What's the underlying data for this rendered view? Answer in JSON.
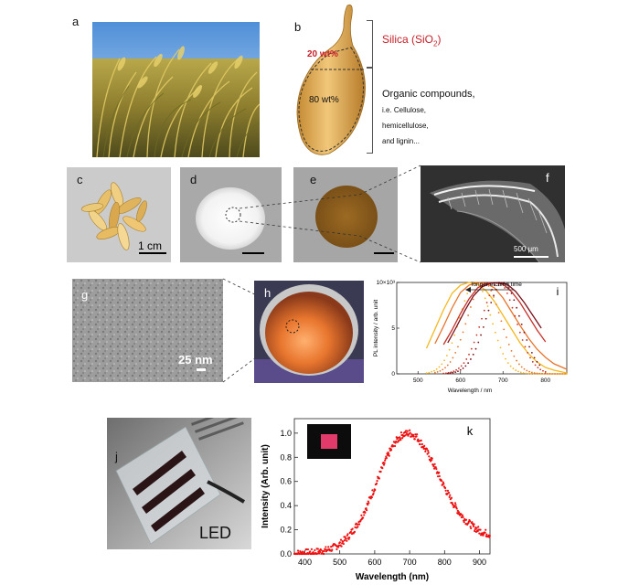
{
  "panels": {
    "a": {
      "label": "a"
    },
    "b": {
      "label": "b",
      "silica_label": "Silica (SiO",
      "silica_sub": "2",
      "silica_close": ")",
      "silica_pct": "20 wt%",
      "organic_pct": "80 wt%",
      "organic_title": "Organic compounds,",
      "organic_lines": [
        "i.e. Cellulose,",
        "hemicellulose,",
        "and lignin..."
      ]
    },
    "c": {
      "label": "c",
      "scale": "1 cm"
    },
    "d": {
      "label": "d"
    },
    "e": {
      "label": "e"
    },
    "f": {
      "label": "f",
      "scale": "500 µm"
    },
    "g": {
      "label": "g",
      "scale": "25 nm"
    },
    "h": {
      "label": "h"
    },
    "i": {
      "label": "i"
    },
    "j": {
      "label": "j",
      "caption": "LED"
    },
    "k": {
      "label": "k"
    }
  },
  "colors": {
    "silica_red": "#c8202a",
    "husk_gold": "#d8a24a",
    "k_series": "#ee1111",
    "i_series": [
      "#f5b81c",
      "#e8742a",
      "#c8322a",
      "#7a0f1a"
    ]
  },
  "chart_data": [
    {
      "type": "line",
      "panel": "i",
      "title": "",
      "xlabel": "Wavelength / nm",
      "ylabel": "PL intensity / arb. unit",
      "xlim": [
        450,
        850
      ],
      "ylim": [
        0,
        10
      ],
      "x_ticks": [
        "500",
        "600",
        "700",
        "800"
      ],
      "y_ticks": [
        "0",
        "5",
        "10×10³"
      ],
      "annotation": "longer etching time",
      "series": [
        {
          "peak": 635,
          "width": 62,
          "x": [
            520,
            540,
            560,
            580,
            600,
            620,
            640,
            660,
            680,
            700,
            720,
            740,
            760,
            780,
            800,
            820,
            840,
            850
          ],
          "values": [
            2.8,
            4.9,
            7.0,
            8.8,
            9.7,
            10.0,
            9.8,
            9.1,
            7.9,
            6.4,
            4.9,
            3.4,
            2.2,
            1.3,
            0.7,
            0.4,
            0.2,
            0.1
          ]
        },
        {
          "peak": 655,
          "width": 65,
          "x": [
            540,
            560,
            580,
            600,
            620,
            640,
            660,
            680,
            700,
            720,
            740,
            760,
            780,
            800,
            820,
            840,
            850
          ],
          "values": [
            3.3,
            5.2,
            7.2,
            8.9,
            9.7,
            10.0,
            9.9,
            9.4,
            8.3,
            6.8,
            5.3,
            3.9,
            2.7,
            1.8,
            1.1,
            0.7,
            0.5
          ]
        },
        {
          "peak": 690,
          "width": 66,
          "x": [
            560,
            580,
            600,
            620,
            640,
            660,
            680,
            700,
            720,
            740,
            760,
            780,
            800
          ],
          "values": [
            3.2,
            4.8,
            6.6,
            8.2,
            9.4,
            9.9,
            10.0,
            9.8,
            9.0,
            7.8,
            6.3,
            4.8,
            3.5
          ]
        },
        {
          "peak": 700,
          "width": 66,
          "x": [
            570,
            590,
            610,
            630,
            650,
            670,
            690,
            710,
            730,
            750,
            770,
            790
          ],
          "values": [
            3.4,
            5.1,
            6.9,
            8.5,
            9.5,
            9.9,
            10.0,
            9.8,
            9.0,
            7.8,
            6.4,
            5.0
          ]
        }
      ]
    },
    {
      "type": "scatter",
      "panel": "k",
      "title": "",
      "xlabel": "Wavelength (nm)",
      "ylabel": "Intensity (Arb. unit)",
      "xlim": [
        370,
        930
      ],
      "ylim": [
        0,
        1.12
      ],
      "x_ticks": [
        "400",
        "500",
        "600",
        "700",
        "800",
        "900"
      ],
      "y_ticks": [
        "0.0",
        "0.2",
        "0.4",
        "0.6",
        "0.8",
        "1.0"
      ],
      "series": [
        {
          "x": [
            370,
            400,
            420,
            440,
            460,
            480,
            500,
            520,
            540,
            560,
            580,
            600,
            620,
            640,
            660,
            680,
            700,
            720,
            740,
            760,
            780,
            800,
            820,
            840,
            860,
            880,
            900,
            920,
            930
          ],
          "values": [
            0.0,
            0.01,
            0.01,
            0.02,
            0.03,
            0.05,
            0.08,
            0.13,
            0.2,
            0.29,
            0.41,
            0.55,
            0.7,
            0.83,
            0.93,
            0.99,
            1.0,
            0.97,
            0.89,
            0.79,
            0.67,
            0.55,
            0.44,
            0.35,
            0.28,
            0.23,
            0.19,
            0.17,
            0.16
          ]
        }
      ]
    }
  ]
}
